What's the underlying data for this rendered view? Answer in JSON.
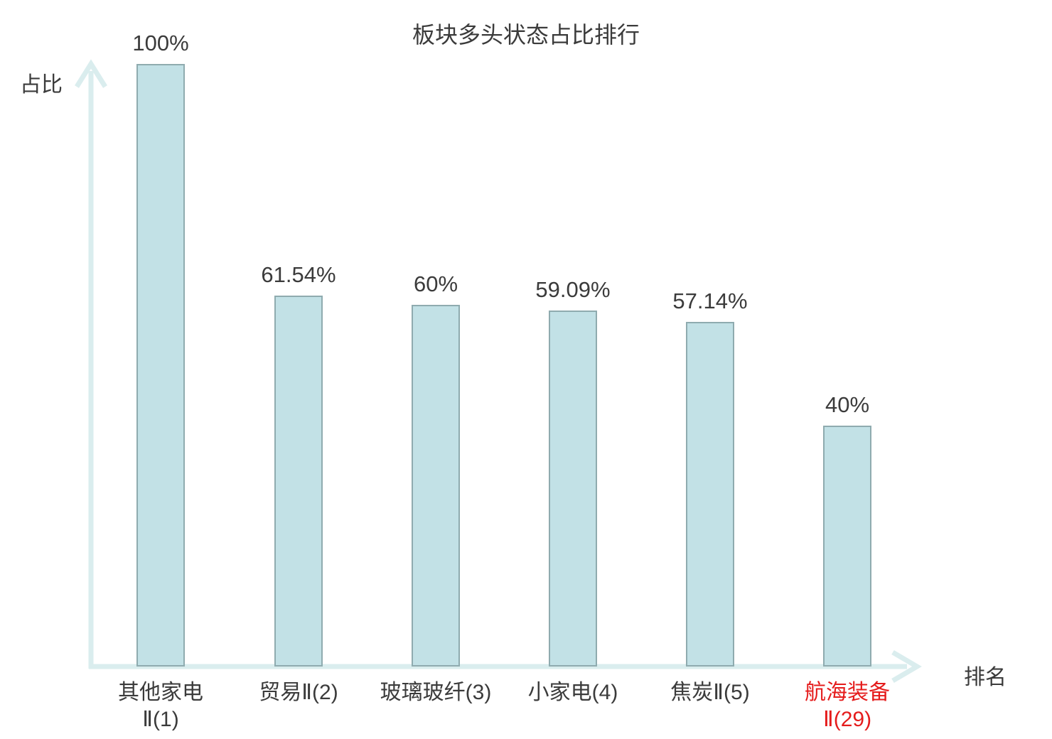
{
  "title": "板块多头状态占比排行",
  "axes": {
    "y_label": "占比",
    "x_label": "排名"
  },
  "colors": {
    "bar_fill": "#c2e1e6",
    "bar_border": "#8fabaf",
    "axis": "#daedee",
    "text": "#3b3b3b",
    "highlight": "#e51c1c"
  },
  "chart_data": {
    "type": "bar",
    "title": "板块多头状态占比排行",
    "xlabel": "排名",
    "ylabel": "占比",
    "ylim": [
      0,
      100
    ],
    "grid": false,
    "legend": false,
    "categories": [
      "其他家电Ⅱ(1)",
      "贸易Ⅱ(2)",
      "玻璃玻纤(3)",
      "小家电(4)",
      "焦炭Ⅱ(5)",
      "航海装备Ⅱ(29)"
    ],
    "values": [
      100,
      61.54,
      60,
      59.09,
      57.14,
      40
    ],
    "bars": [
      {
        "category": "其他家电Ⅱ(1)",
        "cat_line1": "其他家电",
        "cat_line2": "Ⅱ(1)",
        "value": 100,
        "label": "100%",
        "highlighted": false
      },
      {
        "category": "贸易Ⅱ(2)",
        "cat_line1": "贸易Ⅱ(2)",
        "cat_line2": "",
        "value": 61.54,
        "label": "61.54%",
        "highlighted": false
      },
      {
        "category": "玻璃玻纤(3)",
        "cat_line1": "玻璃玻纤(3)",
        "cat_line2": "",
        "value": 60,
        "label": "60%",
        "highlighted": false
      },
      {
        "category": "小家电(4)",
        "cat_line1": "小家电(4)",
        "cat_line2": "",
        "value": 59.09,
        "label": "59.09%",
        "highlighted": false
      },
      {
        "category": "焦炭Ⅱ(5)",
        "cat_line1": "焦炭Ⅱ(5)",
        "cat_line2": "",
        "value": 57.14,
        "label": "57.14%",
        "highlighted": false
      },
      {
        "category": "航海装备Ⅱ(29)",
        "cat_line1": "航海装备",
        "cat_line2": "Ⅱ(29)",
        "value": 40,
        "label": "40%",
        "highlighted": true
      }
    ]
  }
}
